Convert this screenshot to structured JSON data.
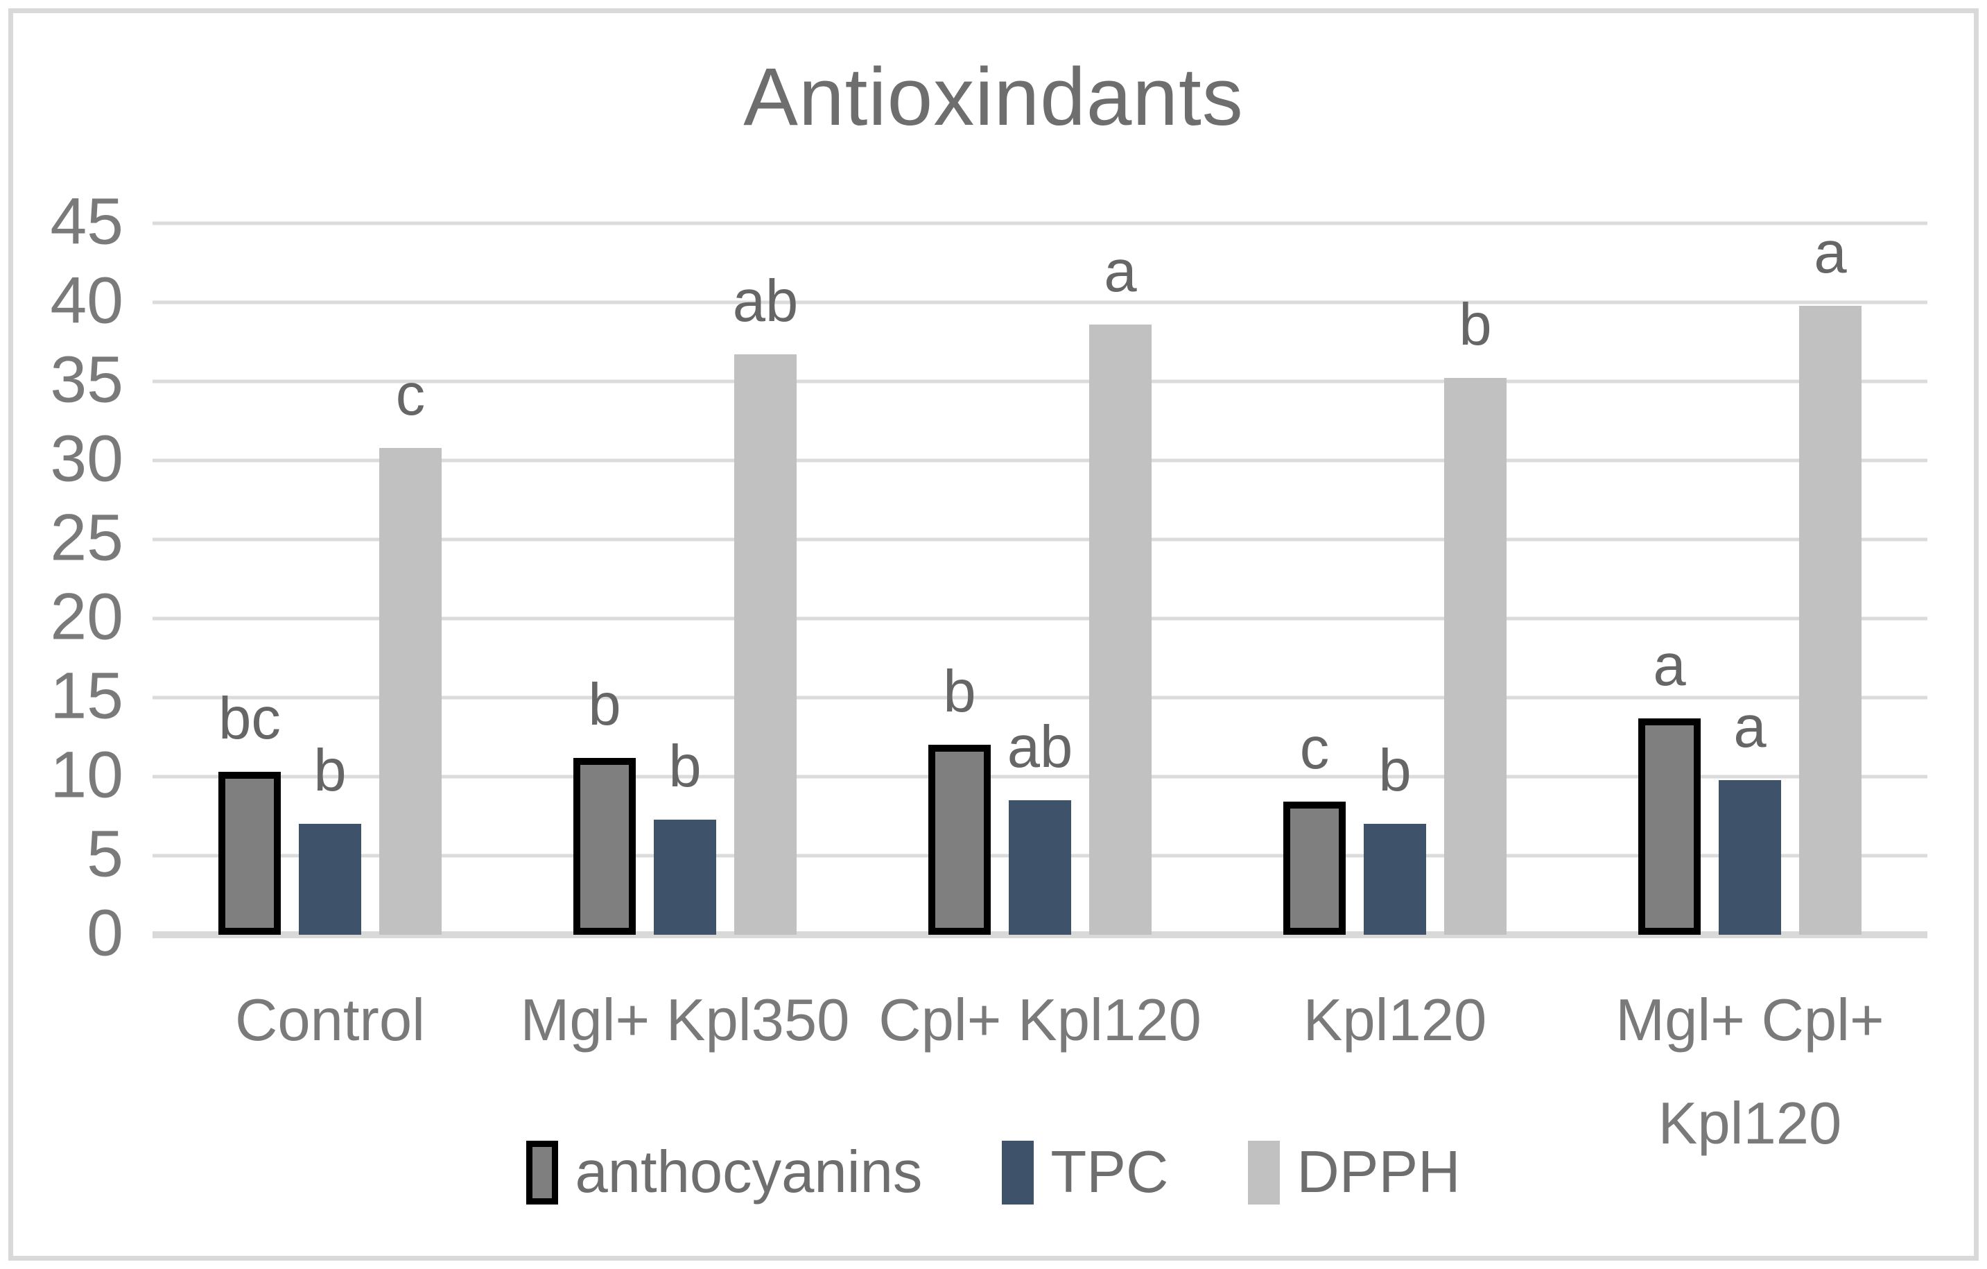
{
  "title": "Antioxindants",
  "chart_data": {
    "type": "bar",
    "title": "Antioxindants",
    "categories": [
      "Control",
      "Mgl+ Kpl350",
      "Cpl+ Kpl120",
      "Kpl120",
      "Mgl+ Cpl+\nKpl120"
    ],
    "series": [
      {
        "name": "anthocyanins",
        "color": "#7f7f7f",
        "border_color": "#000000",
        "values": [
          10.3,
          11.2,
          12.0,
          8.4,
          13.7
        ],
        "letters": [
          "bc",
          "b",
          "b",
          "c",
          "a"
        ]
      },
      {
        "name": "TPC",
        "color": "#3e5269",
        "values": [
          7.0,
          7.3,
          8.5,
          7.0,
          9.8
        ],
        "letters": [
          "b",
          "b",
          "ab",
          "b",
          "a"
        ]
      },
      {
        "name": "DPPH",
        "color": "#c1c1c1",
        "values": [
          30.8,
          36.7,
          38.6,
          35.2,
          40.5
        ],
        "letters": [
          "c",
          "ab",
          "a",
          "b",
          "a"
        ]
      }
    ],
    "xlabel": "",
    "ylabel": "",
    "ylim": [
      0,
      45
    ],
    "y_tick_step": 5,
    "y_ticks": [
      "45",
      "40",
      "35",
      "30",
      "25",
      "20",
      "15",
      "10",
      "5",
      "0"
    ],
    "grid": true,
    "gridline_color": "#dbdbdb",
    "legend_position": "bottom",
    "frame_color": "#d9d9d9",
    "text_color": "#7a7a7a"
  }
}
